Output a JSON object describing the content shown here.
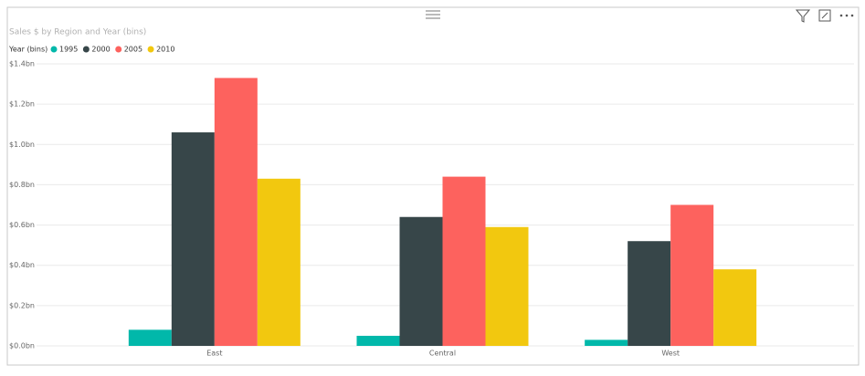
{
  "chart_data": {
    "type": "bar",
    "title": "Sales $ by Region and Year (bins)",
    "legend_title": "Year (bins)",
    "categories": [
      "East",
      "Central",
      "West"
    ],
    "series": [
      {
        "name": "1995",
        "color": "#01b8aa",
        "values": [
          0.08,
          0.05,
          0.03
        ]
      },
      {
        "name": "2000",
        "color": "#374649",
        "values": [
          1.06,
          0.64,
          0.52
        ]
      },
      {
        "name": "2005",
        "color": "#fd625e",
        "values": [
          1.33,
          0.84,
          0.7
        ]
      },
      {
        "name": "2010",
        "color": "#f2c80f",
        "values": [
          0.83,
          0.59,
          0.38
        ]
      }
    ],
    "ylim": [
      0,
      1.4
    ],
    "yticks": [
      {
        "value": 0,
        "label": "$0.0bn"
      },
      {
        "value": 0.2,
        "label": "$0.2bn"
      },
      {
        "value": 0.4,
        "label": "$0.4bn"
      },
      {
        "value": 0.6,
        "label": "$0.6bn"
      },
      {
        "value": 0.8,
        "label": "$0.8bn"
      },
      {
        "value": 1.0,
        "label": "$1.0bn"
      },
      {
        "value": 1.2,
        "label": "$1.2bn"
      },
      {
        "value": 1.4,
        "label": "$1.4bn"
      }
    ],
    "grid": true
  }
}
